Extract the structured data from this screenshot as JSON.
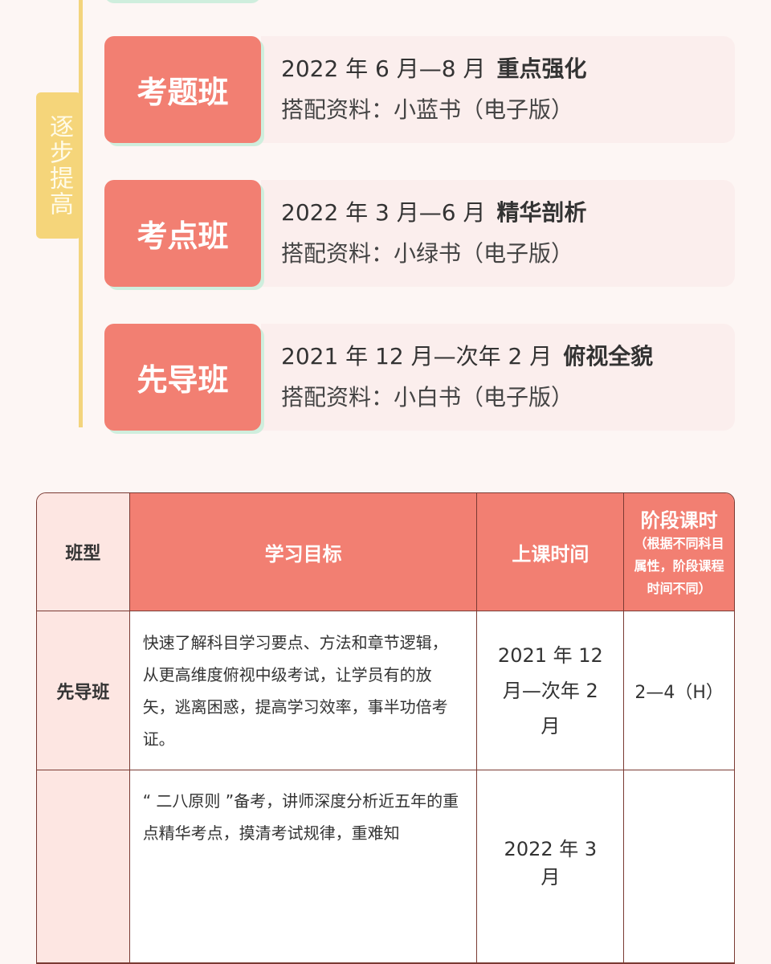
{
  "stages": {
    "label": "逐步提高",
    "items": [
      {
        "name": "考题班",
        "period": "2022 年 6 月—8 月",
        "focus": "重点强化",
        "material": "搭配资料：小蓝书（电子版）"
      },
      {
        "name": "考点班",
        "period": "2022 年 3 月—6 月",
        "focus": "精华剖析",
        "material": "搭配资料：小绿书（电子版）"
      },
      {
        "name": "先导班",
        "period": "2021 年 12 月—次年 2 月",
        "focus": "俯视全貌",
        "material": "搭配资料：小白书（电子版）"
      }
    ]
  },
  "table": {
    "header": {
      "type": "班型",
      "goal": "学习目标",
      "time": "上课时间",
      "hours": "阶段课时",
      "hours_note": "（根据不同科目属性，阶段课程时间不同）"
    },
    "rows": [
      {
        "type": "先导班",
        "goal": "快速了解科目学习要点、方法和章节逻辑，从更高维度俯视中级考试，让学员有的放矢，逃离困惑，提高学习效率，事半功倍考证。",
        "time": "2021 年 12 月—次年 2 月",
        "hours": "2—4（H）"
      },
      {
        "goal": "“ 二八原则 ”备考，讲师深度分析近五年的重点精华考点，摸清考试规律，重难知",
        "time": "2022 年 3 月"
      }
    ]
  }
}
